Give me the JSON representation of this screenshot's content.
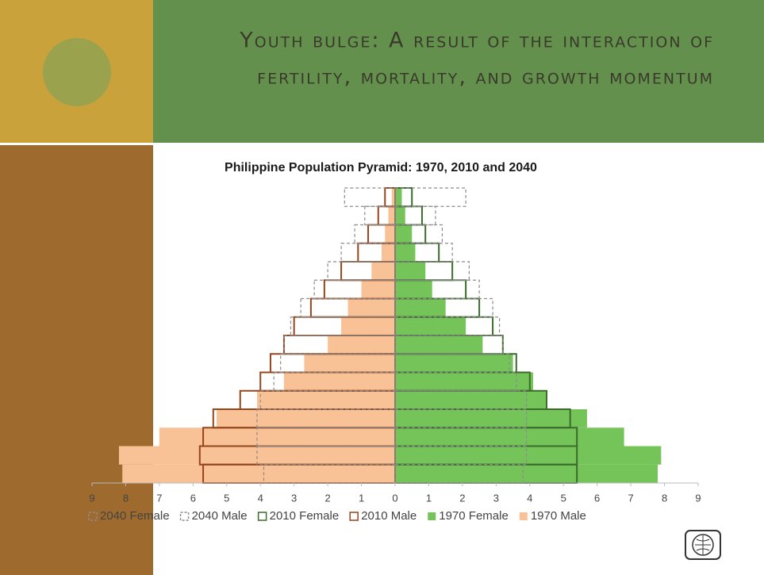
{
  "slide_title": [
    "Youth bulge: A result of the interaction of",
    "fertility, mortality, and growth momentum"
  ],
  "chart_data": {
    "type": "pyramid",
    "title": "Philippine Population Pyramid:  1970, 2010 and 2040",
    "categories": [
      null,
      null,
      null,
      null,
      null,
      null,
      null,
      null,
      null,
      null,
      null,
      null,
      null,
      null,
      null,
      null
    ],
    "xlim": [
      -9,
      9
    ],
    "xticks": [
      {
        "value": -9,
        "label": "9"
      },
      {
        "value": -8,
        "label": "8"
      },
      {
        "value": -7,
        "label": "7"
      },
      {
        "value": -6,
        "label": "6"
      },
      {
        "value": -5,
        "label": "5"
      },
      {
        "value": -4,
        "label": "4"
      },
      {
        "value": -3,
        "label": "3"
      },
      {
        "value": -2,
        "label": "2"
      },
      {
        "value": -1,
        "label": "1"
      },
      0,
      1,
      2,
      3,
      4,
      5,
      6,
      7,
      8,
      9
    ],
    "legend": "bottom",
    "series": [
      {
        "name": "2040 Female",
        "style": "dashed",
        "color": "#8c8c8c",
        "values": [
          3.8,
          3.9,
          3.9,
          3.9,
          3.9,
          3.6,
          3.4,
          3.2,
          3.1,
          2.9,
          2.5,
          2.2,
          1.7,
          1.4,
          1.2,
          2.1
        ]
      },
      {
        "name": "2040 Male",
        "style": "dashed",
        "color": "#8c8c8c",
        "values": [
          -3.9,
          -4.1,
          -4.1,
          -4.1,
          -4.0,
          -3.6,
          -3.4,
          -3.3,
          -3.1,
          -2.8,
          -2.4,
          -2.0,
          -1.6,
          -1.2,
          -0.9,
          -1.5
        ]
      },
      {
        "name": "2010 Female",
        "style": "outline",
        "color": "#3d6b2c",
        "values": [
          5.4,
          5.4,
          5.4,
          5.2,
          4.5,
          4.0,
          3.6,
          3.2,
          2.9,
          2.5,
          2.1,
          1.7,
          1.3,
          0.9,
          0.8,
          0.5
        ]
      },
      {
        "name": "2010 Male",
        "style": "outline",
        "color": "#94461c",
        "values": [
          -5.7,
          -5.8,
          -5.7,
          -5.4,
          -4.6,
          -4.0,
          -3.7,
          -3.3,
          -3.0,
          -2.5,
          -2.1,
          -1.6,
          -1.1,
          -0.8,
          -0.5,
          -0.3
        ]
      },
      {
        "name": "1970 Female",
        "style": "fill",
        "color": "#74c45a",
        "values": [
          7.8,
          7.9,
          6.8,
          5.7,
          4.5,
          4.1,
          3.5,
          2.6,
          2.1,
          1.5,
          1.1,
          0.9,
          0.6,
          0.5,
          0.3,
          0.2
        ]
      },
      {
        "name": "1970 Male",
        "style": "fill",
        "color": "#f9c196",
        "values": [
          -8.1,
          -8.2,
          -7.0,
          -5.3,
          -4.1,
          -3.3,
          -2.7,
          -2.0,
          -1.6,
          -1.4,
          -1.0,
          -0.7,
          -0.4,
          -0.3,
          -0.2,
          -0.1
        ]
      }
    ]
  }
}
